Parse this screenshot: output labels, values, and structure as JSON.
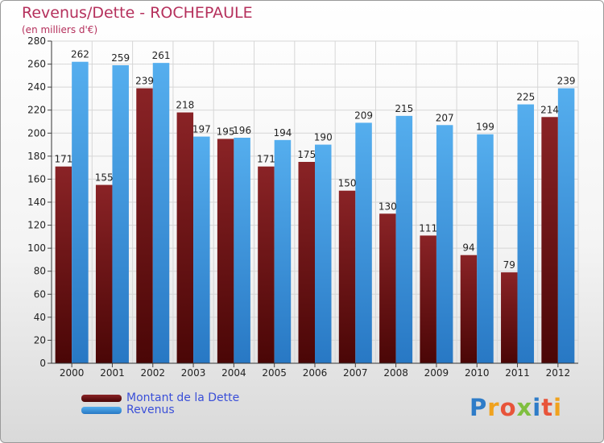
{
  "title": "Revenus/Dette - ROCHEPAULE",
  "subtitle": "(en milliers d'€)",
  "legend": {
    "debt_label": "Montant de la Dette",
    "revenue_label": "Revenus"
  },
  "logo": {
    "text": "Proxiti",
    "colors": [
      "#2e7cc8",
      "#f0a21e",
      "#e8543a",
      "#7fbf3f",
      "#2e7cc8",
      "#e8543a",
      "#f0a21e"
    ]
  },
  "colors": {
    "debt": "#7a1b1d",
    "revenue": "#4aa0e2",
    "title": "#b5305c"
  },
  "chart_data": {
    "type": "bar",
    "categories": [
      "2000",
      "2001",
      "2002",
      "2003",
      "2004",
      "2005",
      "2006",
      "2007",
      "2008",
      "2009",
      "2010",
      "2011",
      "2012"
    ],
    "series": [
      {
        "name": "Montant de la Dette",
        "values": [
          171,
          155,
          239,
          218,
          195,
          171,
          175,
          150,
          130,
          111,
          94,
          79,
          214
        ]
      },
      {
        "name": "Revenus",
        "values": [
          262,
          259,
          261,
          197,
          196,
          194,
          190,
          209,
          215,
          207,
          199,
          225,
          239
        ]
      }
    ],
    "ylim": [
      0,
      280
    ],
    "yticks": [
      0,
      20,
      40,
      60,
      80,
      100,
      120,
      140,
      160,
      180,
      200,
      220,
      240,
      260,
      280
    ],
    "grid": true,
    "legend_position": "bottom-left"
  }
}
